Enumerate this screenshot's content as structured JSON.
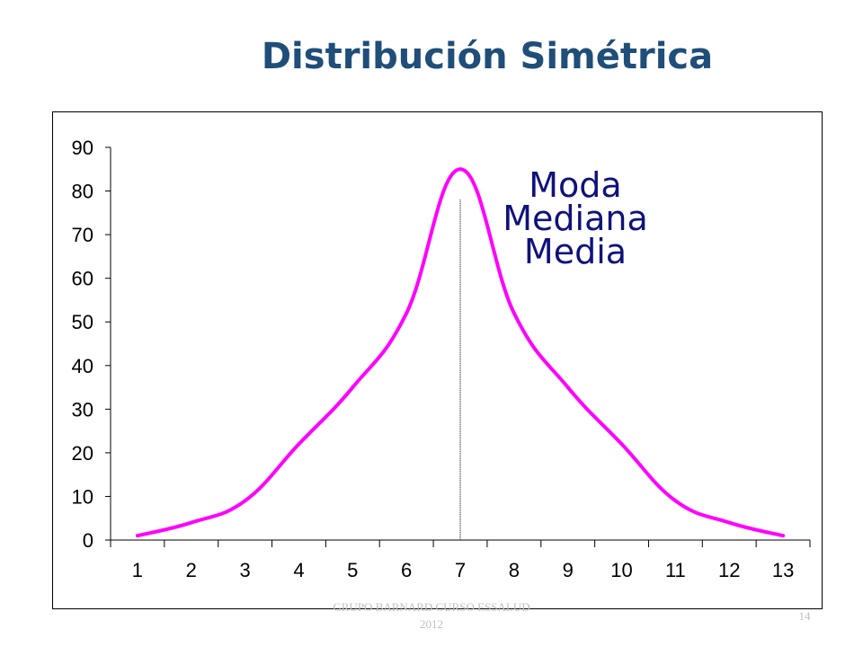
{
  "slide": {
    "title": "Distribución Simétrica",
    "footer_line1": "GRUPO BARNARD CURSO ESSALUD",
    "footer_line2": "2012",
    "page_number": "14"
  },
  "chart_data": {
    "type": "line",
    "title": "",
    "xlabel": "",
    "ylabel": "",
    "x": [
      1,
      2,
      3,
      4,
      5,
      6,
      7,
      8,
      9,
      10,
      11,
      12,
      13
    ],
    "ylim": [
      0,
      90
    ],
    "yticks": [
      0,
      10,
      20,
      30,
      40,
      50,
      60,
      70,
      80,
      90
    ],
    "series": [
      {
        "values": [
          1,
          4,
          9,
          22,
          35,
          52,
          85,
          52,
          35,
          22,
          9,
          4,
          1
        ],
        "color": "#ff00ff"
      }
    ],
    "center_line": {
      "x": 7,
      "value": 78,
      "color": "#000000"
    },
    "annotation": [
      "Moda",
      "Mediana",
      "Media"
    ],
    "annotation_color": "#10127a",
    "grid": false,
    "legend": "none"
  }
}
